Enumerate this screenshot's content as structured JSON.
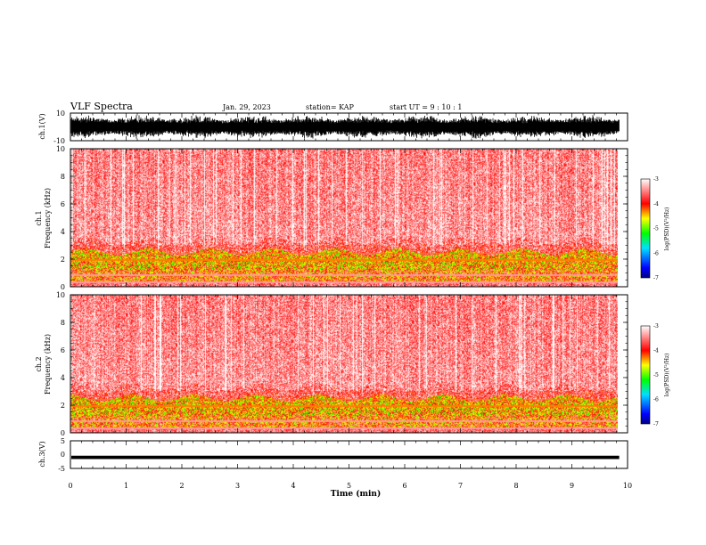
{
  "header": {
    "title": "VLF Spectra",
    "date": "Jan. 29, 2023",
    "station": "station= KAP",
    "start": "start UT =  9 : 10 : 1"
  },
  "chart_data": [
    {
      "type": "line",
      "panel": "ch1-waveform",
      "ylabel": "ch.1(V)",
      "ylim": [
        -10,
        10
      ],
      "yticks": [
        "10",
        "-10"
      ],
      "xlim": [
        0,
        10
      ]
    },
    {
      "type": "heatmap",
      "panel": "ch1-spectrogram",
      "ylabel_channel": "ch.1",
      "ylabel": "Frequency (kHz)",
      "ylim": [
        0,
        10
      ],
      "yticks": [
        "0",
        "2",
        "4",
        "6",
        "8",
        "10"
      ],
      "xlim": [
        0,
        9.85
      ],
      "colorbar": {
        "label": "log(PSD)(V²/Hz)",
        "range": [
          -7,
          -3
        ],
        "ticks": [
          "-3",
          "-4",
          "-5",
          "-6",
          "-7"
        ],
        "colors": [
          "#000080",
          "#0000ff",
          "#00e0ff",
          "#00ff00",
          "#ffff00",
          "#ff0000",
          "#ffffff"
        ]
      },
      "bands": [
        {
          "from_khz": 0,
          "to_khz": 1.2,
          "level": "mixed"
        },
        {
          "from_khz": 1.2,
          "to_khz": 2.5,
          "level": -5
        },
        {
          "from_khz": 2.5,
          "to_khz": 3.3,
          "level": -4
        },
        {
          "from_khz": 3.3,
          "to_khz": 10,
          "level": -3.6
        }
      ]
    },
    {
      "type": "heatmap",
      "panel": "ch2-spectrogram",
      "ylabel_channel": "ch.2",
      "ylabel": "Frequency (kHz)",
      "ylim": [
        0,
        10
      ],
      "yticks": [
        "0",
        "2",
        "4",
        "6",
        "8",
        "10"
      ],
      "xlim": [
        0,
        9.85
      ],
      "colorbar": {
        "label": "log(PSD)(V²/Hz)",
        "range": [
          -7,
          -3
        ],
        "ticks": [
          "-3",
          "-4",
          "-5",
          "-6",
          "-7"
        ],
        "colors": [
          "#000080",
          "#0000ff",
          "#00e0ff",
          "#00ff00",
          "#ffff00",
          "#ff0000",
          "#ffffff"
        ]
      },
      "bands": [
        {
          "from_khz": 0,
          "to_khz": 1.2,
          "level": "mixed"
        },
        {
          "from_khz": 1.2,
          "to_khz": 2.8,
          "level": -5
        },
        {
          "from_khz": 2.8,
          "to_khz": 3.2,
          "level": -4
        },
        {
          "from_khz": 3.2,
          "to_khz": 10,
          "level": -3.6
        }
      ]
    },
    {
      "type": "line",
      "panel": "ch3-waveform",
      "ylabel": "ch.3(V)",
      "ylim": [
        -5,
        5
      ],
      "yticks": [
        "5",
        "0",
        "-5"
      ],
      "trace_level": -1,
      "xlim": [
        0,
        9.85
      ]
    }
  ],
  "xaxis": {
    "label": "Time (min)",
    "ticks": [
      "0",
      "1",
      "2",
      "3",
      "4",
      "5",
      "6",
      "7",
      "8",
      "9",
      "10"
    ],
    "range": [
      0,
      10
    ]
  }
}
